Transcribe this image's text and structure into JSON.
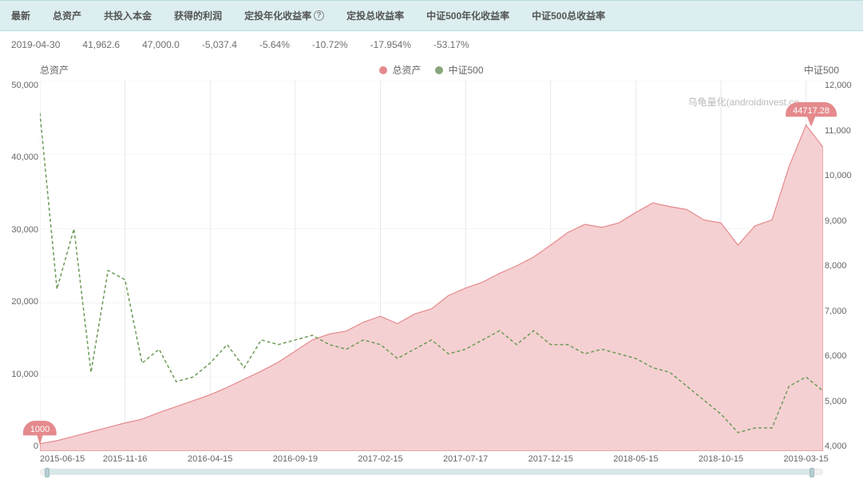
{
  "colors": {
    "th_bg": "#dceef0",
    "th_border": "#b8dadd",
    "td_text": "#6f6f6f",
    "grid": "#e8e8e8",
    "area_fill": "#f5d0d2",
    "area_stroke": "#e58a8d",
    "line_stroke": "#6b9b56",
    "marker_bg": "#e58a8d",
    "legend_dot1": "#e58a8d",
    "legend_dot2": "#8aa67c"
  },
  "table": {
    "headers": [
      "最新",
      "总资产",
      "共投入本金",
      "获得的利润",
      "定投年化收益率",
      "定投总收益率",
      "中证500年化收益率",
      "中证500总收益率"
    ],
    "help_on": 4,
    "row": [
      "2019-04-30",
      "41,962.6",
      "47,000.0",
      "-5,037.4",
      "-5.64%",
      "-10.72%",
      "-17.954%",
      "-53.17%"
    ]
  },
  "chart": {
    "title_left": "总资产",
    "title_right": "中证500",
    "legend": [
      {
        "label": "总资产",
        "color_key": "legend_dot1"
      },
      {
        "label": "中证500",
        "color_key": "legend_dot2"
      }
    ],
    "watermark": "乌龟量化(androidinvest.co",
    "y_left": {
      "min": 0,
      "max": 50000,
      "step": 10000,
      "ticks": [
        "50,000",
        "40,000",
        "30,000",
        "20,000",
        "10,000",
        "0"
      ]
    },
    "y_right": {
      "min": 4000,
      "max": 12000,
      "step": 1000,
      "ticks": [
        "12,000",
        "11,000",
        "10,000",
        "9,000",
        "8,000",
        "7,000",
        "6,000",
        "5,000",
        "4,000"
      ]
    },
    "x_domain": {
      "min": 0,
      "max": 46
    },
    "x_ticks": [
      {
        "pos": 0,
        "label": "2015-06-15",
        "anchor": "start"
      },
      {
        "pos": 5,
        "label": "2015-11-16"
      },
      {
        "pos": 10,
        "label": "2016-04-15"
      },
      {
        "pos": 15,
        "label": "2016-09-19"
      },
      {
        "pos": 20,
        "label": "2017-02-15"
      },
      {
        "pos": 25,
        "label": "2017-07-17"
      },
      {
        "pos": 30,
        "label": "2017-12-15"
      },
      {
        "pos": 35,
        "label": "2018-05-15"
      },
      {
        "pos": 40,
        "label": "2018-10-15"
      },
      {
        "pos": 45,
        "label": "2019-03-15"
      }
    ],
    "total_assets": [
      1000,
      1400,
      2000,
      2600,
      3200,
      3800,
      4300,
      5200,
      6000,
      6800,
      7600,
      8600,
      9700,
      10800,
      12000,
      13500,
      15000,
      15800,
      16200,
      17400,
      18200,
      17200,
      18500,
      19200,
      21000,
      22000,
      22800,
      24000,
      25000,
      26200,
      27800,
      29500,
      30600,
      30200,
      30800,
      32200,
      33500,
      33000,
      32600,
      31200,
      30800,
      27800,
      30400,
      31200,
      38400,
      44000,
      41000
    ],
    "csi500": [
      11300,
      7500,
      8800,
      5700,
      7900,
      7700,
      5900,
      6200,
      5500,
      5600,
      5900,
      6300,
      5800,
      6400,
      6300,
      6400,
      6500,
      6300,
      6200,
      6400,
      6300,
      6000,
      6200,
      6400,
      6100,
      6200,
      6400,
      6600,
      6300,
      6600,
      6300,
      6300,
      6100,
      6200,
      6100,
      6000,
      5800,
      5700,
      5400,
      5100,
      4800,
      4400,
      4500,
      4500,
      5400,
      5600,
      5300
    ],
    "start_marker": {
      "x": 0,
      "value": "1000"
    },
    "end_marker": {
      "x": 45.3,
      "label": "44717.28",
      "y_value": 44000
    }
  }
}
